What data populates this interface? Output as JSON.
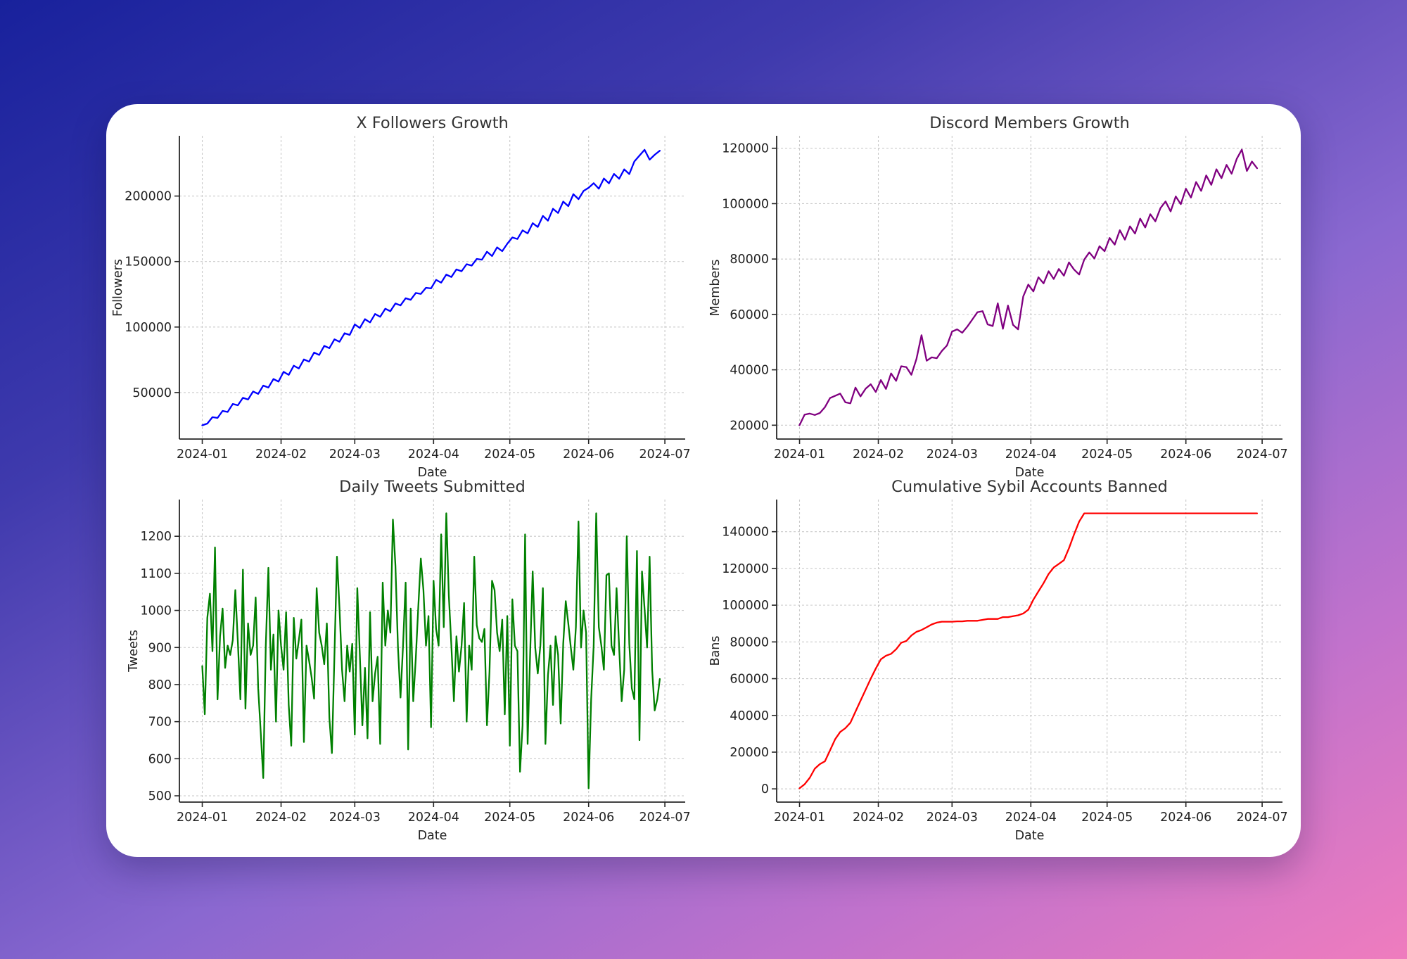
{
  "page": {
    "background_gradient": {
      "angle_deg": 150,
      "stops": [
        "#18219c",
        "#3f3aad",
        "#8a68d0",
        "#c172cc",
        "#ef7cbe"
      ]
    },
    "card_background": "#ffffff"
  },
  "chart_data": [
    {
      "type": "line",
      "title": "X Followers Growth",
      "xlabel": "Date",
      "ylabel": "Followers",
      "line_color": "#0000ff",
      "grid": true,
      "legend": "none",
      "x_start_date": "2024-01-01",
      "x_step_days": 2,
      "xlim_days": [
        -9,
        190
      ],
      "ylim": [
        14500,
        246000
      ],
      "yticks": [
        50000,
        100000,
        150000,
        200000
      ],
      "xtick_days": [
        0,
        31,
        60,
        91,
        121,
        152,
        182
      ],
      "xtick_labels": [
        "2024-01",
        "2024-02",
        "2024-03",
        "2024-04",
        "2024-05",
        "2024-06",
        "2024-07"
      ],
      "values": [
        25000,
        26300,
        31200,
        30600,
        36000,
        35200,
        41300,
        40300,
        46000,
        44700,
        50800,
        49000,
        55300,
        53800,
        60300,
        58400,
        65800,
        63500,
        70500,
        68400,
        75300,
        73600,
        80500,
        78700,
        85600,
        83900,
        90600,
        88800,
        95300,
        94000,
        102000,
        99300,
        106000,
        103500,
        110000,
        107800,
        114000,
        112100,
        118000,
        116500,
        122000,
        120800,
        126000,
        125300,
        130000,
        129500,
        136000,
        133900,
        140000,
        138200,
        144000,
        142600,
        148000,
        146900,
        152000,
        151400,
        157500,
        154200,
        160800,
        157900,
        163600,
        168400,
        167200,
        173800,
        171500,
        179300,
        176400,
        184800,
        181200,
        190300,
        187100,
        195800,
        192300,
        201400,
        197600,
        203900,
        206300,
        209800,
        205600,
        213400,
        209700,
        216900,
        213200,
        220400,
        216800,
        226400,
        230900,
        235300,
        227800,
        231500,
        234600
      ]
    },
    {
      "type": "line",
      "title": "Discord Members Growth",
      "xlabel": "Date",
      "ylabel": "Members",
      "line_color": "#800080",
      "grid": true,
      "legend": "none",
      "x_start_date": "2024-01-01",
      "x_step_days": 2,
      "xlim_days": [
        -9,
        190
      ],
      "ylim": [
        15000,
        124500
      ],
      "yticks": [
        20000,
        40000,
        60000,
        80000,
        100000,
        120000
      ],
      "xtick_days": [
        0,
        31,
        60,
        91,
        121,
        152,
        182
      ],
      "xtick_labels": [
        "2024-01",
        "2024-02",
        "2024-03",
        "2024-04",
        "2024-05",
        "2024-06",
        "2024-07"
      ],
      "values": [
        20000,
        23800,
        24200,
        23700,
        24400,
        26500,
        29800,
        30600,
        31400,
        28300,
        27900,
        33600,
        30400,
        33200,
        34800,
        32000,
        36300,
        33100,
        38700,
        36000,
        41300,
        41000,
        38200,
        43900,
        52500,
        43300,
        44500,
        44200,
        46800,
        48800,
        53800,
        54600,
        53400,
        55600,
        58200,
        60800,
        61200,
        56400,
        55800,
        64000,
        54800,
        63200,
        56200,
        54600,
        66500,
        70800,
        68300,
        73400,
        71200,
        75600,
        72800,
        76400,
        74000,
        78800,
        76200,
        74400,
        79800,
        82400,
        80200,
        84600,
        82800,
        87600,
        85200,
        90400,
        87000,
        91800,
        89200,
        94600,
        91400,
        96200,
        93600,
        98400,
        100800,
        97200,
        102600,
        99800,
        105400,
        102200,
        107800,
        104600,
        110200,
        106800,
        112400,
        109200,
        114000,
        110800,
        116200,
        119500,
        111800,
        115200,
        112800
      ]
    },
    {
      "type": "line",
      "title": "Daily Tweets Submitted",
      "xlabel": "Date",
      "ylabel": "Tweets",
      "line_color": "#008000",
      "grid": true,
      "legend": "none",
      "x_start_date": "2024-01-01",
      "x_step_days": 1,
      "xlim_days": [
        -9,
        190
      ],
      "ylim": [
        483,
        1299
      ],
      "yticks": [
        500,
        600,
        700,
        800,
        900,
        1000,
        1100,
        1200
      ],
      "xtick_days": [
        0,
        31,
        60,
        91,
        121,
        152,
        182
      ],
      "xtick_labels": [
        "2024-01",
        "2024-02",
        "2024-03",
        "2024-04",
        "2024-05",
        "2024-06",
        "2024-07"
      ],
      "values": [
        850,
        720,
        980,
        1045,
        890,
        1170,
        760,
        930,
        1005,
        845,
        905,
        880,
        920,
        1055,
        915,
        760,
        1110,
        735,
        965,
        880,
        905,
        1035,
        790,
        672,
        548,
        905,
        1115,
        840,
        935,
        700,
        1000,
        905,
        840,
        995,
        745,
        635,
        980,
        870,
        920,
        975,
        645,
        905,
        865,
        820,
        762,
        1060,
        940,
        905,
        855,
        965,
        710,
        615,
        880,
        1145,
        1005,
        840,
        755,
        905,
        835,
        910,
        665,
        1060,
        880,
        690,
        845,
        655,
        995,
        755,
        830,
        875,
        640,
        1075,
        905,
        1000,
        940,
        1245,
        1120,
        900,
        765,
        905,
        1075,
        625,
        1005,
        755,
        870,
        1010,
        1140,
        1055,
        905,
        985,
        685,
        1080,
        950,
        905,
        1205,
        955,
        1262,
        1040,
        905,
        755,
        930,
        835,
        905,
        1020,
        700,
        905,
        840,
        1145,
        960,
        925,
        915,
        950,
        690,
        835,
        1080,
        1055,
        940,
        890,
        975,
        720,
        985,
        635,
        1030,
        905,
        890,
        565,
        690,
        1205,
        640,
        885,
        1105,
        900,
        830,
        905,
        1060,
        640,
        825,
        905,
        745,
        930,
        880,
        695,
        910,
        1025,
        965,
        900,
        840,
        955,
        1240,
        900,
        1000,
        940,
        520,
        760,
        905,
        1262,
        955,
        905,
        840,
        1095,
        1100,
        905,
        880,
        1060,
        900,
        755,
        840,
        1200,
        910,
        790,
        760,
        1160,
        650,
        1105,
        1005,
        900,
        1145,
        840,
        730,
        760,
        815
      ]
    },
    {
      "type": "line",
      "title": "Cumulative Sybil Accounts Banned",
      "xlabel": "Date",
      "ylabel": "Bans",
      "line_color": "#ff0000",
      "grid": true,
      "legend": "none",
      "x_start_date": "2024-01-01",
      "x_step_days": 2,
      "xlim_days": [
        -9,
        190
      ],
      "ylim": [
        -7200,
        157500
      ],
      "yticks": [
        0,
        20000,
        40000,
        60000,
        80000,
        100000,
        120000,
        140000
      ],
      "xtick_days": [
        0,
        31,
        60,
        91,
        121,
        152,
        182
      ],
      "xtick_labels": [
        "2024-01",
        "2024-02",
        "2024-03",
        "2024-04",
        "2024-05",
        "2024-06",
        "2024-07"
      ],
      "values": [
        300,
        2500,
        6000,
        11000,
        13500,
        15000,
        21000,
        27000,
        31000,
        33000,
        36000,
        42000,
        48000,
        54000,
        60000,
        65500,
        70500,
        72500,
        73500,
        76000,
        79500,
        80500,
        83500,
        85500,
        86500,
        88000,
        89500,
        90500,
        91000,
        91000,
        91000,
        91200,
        91200,
        91500,
        91500,
        91500,
        92000,
        92500,
        92500,
        92500,
        93500,
        93500,
        94000,
        94500,
        95500,
        97500,
        103000,
        107500,
        112000,
        117000,
        120500,
        122500,
        124500,
        131000,
        138500,
        145500,
        150000,
        150000,
        150000,
        150000,
        150000,
        150000,
        150000,
        150000,
        150000,
        150000,
        150000,
        150000,
        150000,
        150000,
        150000,
        150000,
        150000,
        150000,
        150000,
        150000,
        150000,
        150000,
        150000,
        150000,
        150000,
        150000,
        150000,
        150000,
        150000,
        150000,
        150000,
        150000,
        150000,
        150000,
        150000
      ]
    }
  ]
}
